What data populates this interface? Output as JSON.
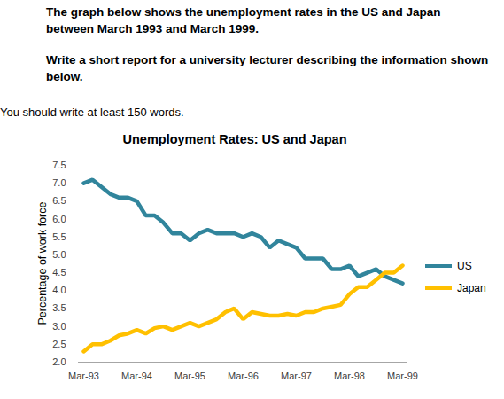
{
  "header": {
    "paragraphs": [
      "The graph below shows the unemployment rates in the US and Japan between March 1993 and March 1999.",
      "Write a short report for a university lecturer describing the information shown below."
    ],
    "note": "You should write at least 150 words."
  },
  "chart_data": {
    "type": "line",
    "title": "Unemployment Rates: US and Japan",
    "y_label": "Percentage of work force",
    "categories": [
      "Mar-93",
      null,
      null,
      null,
      null,
      null,
      "Mar-94",
      null,
      null,
      null,
      null,
      null,
      "Mar-95",
      null,
      null,
      null,
      null,
      null,
      "Mar-96",
      null,
      null,
      null,
      null,
      null,
      "Mar-97",
      null,
      null,
      null,
      null,
      null,
      "Mar-98",
      null,
      null,
      null,
      null,
      null,
      "Mar-99"
    ],
    "series": [
      {
        "name": "US",
        "color": "#31859c",
        "values": [
          7.0,
          7.1,
          6.9,
          6.7,
          6.6,
          6.6,
          6.5,
          6.1,
          6.1,
          5.9,
          5.6,
          5.6,
          5.4,
          5.6,
          5.7,
          5.6,
          5.6,
          5.6,
          5.5,
          5.6,
          5.5,
          5.2,
          5.4,
          5.3,
          5.2,
          4.9,
          4.9,
          4.9,
          4.6,
          4.6,
          4.7,
          4.4,
          4.5,
          4.6,
          4.4,
          4.3,
          4.2
        ]
      },
      {
        "name": "Japan",
        "color": "#ffc000",
        "values": [
          2.3,
          2.5,
          2.5,
          2.6,
          2.75,
          2.8,
          2.9,
          2.8,
          2.95,
          3.0,
          2.9,
          3.0,
          3.1,
          3.0,
          3.1,
          3.2,
          3.4,
          3.5,
          3.2,
          3.4,
          3.35,
          3.3,
          3.3,
          3.35,
          3.3,
          3.4,
          3.4,
          3.5,
          3.55,
          3.6,
          3.9,
          4.1,
          4.1,
          4.3,
          4.5,
          4.5,
          4.7
        ]
      }
    ],
    "ylim": [
      2.0,
      7.5
    ],
    "yticks": [
      {
        "value": 2,
        "label": "2.0"
      },
      2.5,
      {
        "value": 3,
        "label": "3.0"
      },
      3.5,
      {
        "value": 4,
        "label": "4.0"
      },
      4.5,
      {
        "value": 5,
        "label": "5.0"
      },
      5.5,
      {
        "value": 6,
        "label": "6.0"
      },
      6.5,
      {
        "value": 7,
        "label": "7.0"
      },
      7.5
    ],
    "grid": false,
    "legend": "right"
  }
}
